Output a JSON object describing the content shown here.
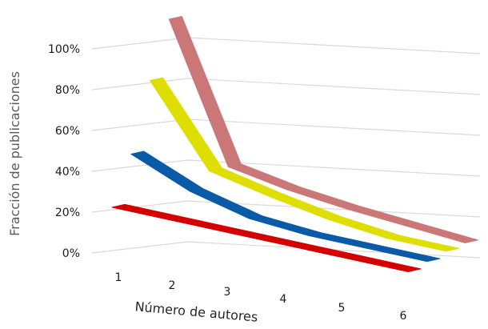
{
  "chart_data": {
    "type": "line",
    "subtype": "3d-ribbon",
    "title": "",
    "xlabel": "Número de autores",
    "ylabel": "Fracción de publicaciones",
    "categories": [
      "1",
      "2",
      "3",
      "4",
      "5",
      "6"
    ],
    "y_ticks": [
      "0%",
      "20%",
      "40%",
      "60%",
      "80%",
      "100%"
    ],
    "ylim": [
      0,
      100
    ],
    "grid": true,
    "legend": "none",
    "series": [
      {
        "color": "#d40000",
        "values": [
          12,
          10,
          8,
          6,
          4,
          2
        ]
      },
      {
        "color": "#0a5aa8",
        "values": [
          36,
          22,
          13,
          9,
          7,
          5
        ]
      },
      {
        "color": "#dede00",
        "values": [
          70,
          30,
          22,
          15,
          10,
          8
        ]
      },
      {
        "color": "#cc7777",
        "values": [
          98,
          30,
          23,
          18,
          14,
          10
        ]
      }
    ]
  }
}
